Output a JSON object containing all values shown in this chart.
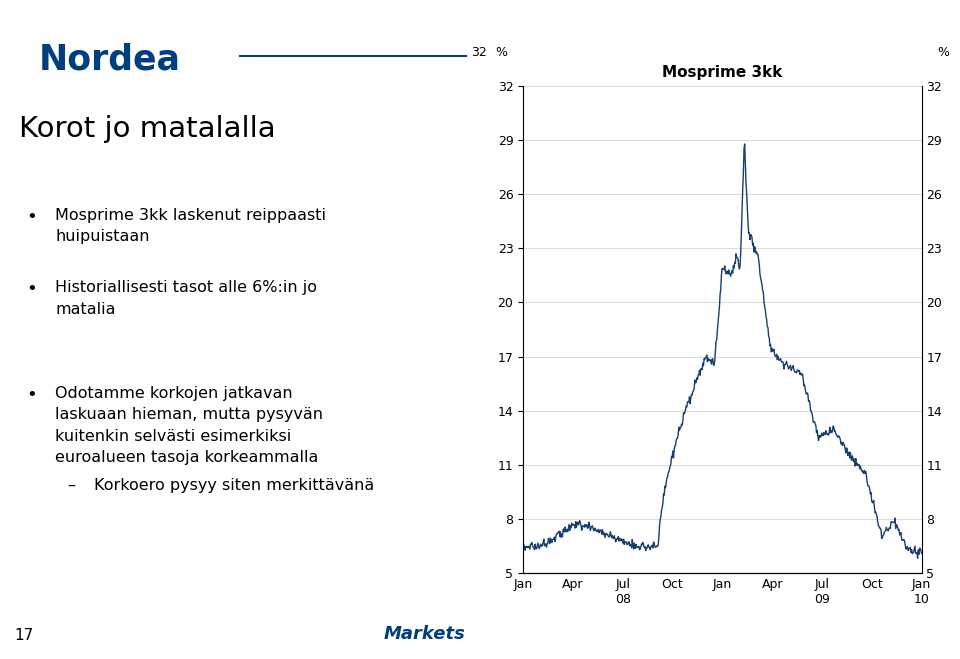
{
  "title": "Korot jo matalalla",
  "bullets": [
    "Mosprime 3kk laskenut reippaasti\nhuipuistaan",
    "Historiallisesti tasot alle 6%:in jo\nmatalia",
    "Odotamme korkojen jatkavan\nlaskuaan hieman, mutta pysyvän\nkuitenkin selvästi esimerkiksi\neuroalueen tasoja korkeammalla"
  ],
  "sub_bullet": "Korkoero pysyy siten merkittävänä",
  "chart_title": "Mosprime 3kk",
  "y_ticks": [
    5,
    8,
    11,
    14,
    17,
    20,
    23,
    26,
    29,
    32
  ],
  "ylim": [
    5,
    32
  ],
  "x_tick_labels": [
    "Jan",
    "Apr",
    "Jul\n08",
    "Oct",
    "Jan",
    "Apr",
    "Jul\n09",
    "Oct",
    "Jan\n10"
  ],
  "nordea_blue": "#003f7f",
  "line_color": "#1a3f6f",
  "text_color": "#000000",
  "page_number": "17",
  "background": "#ffffff",
  "grid_color": "#cccccc"
}
